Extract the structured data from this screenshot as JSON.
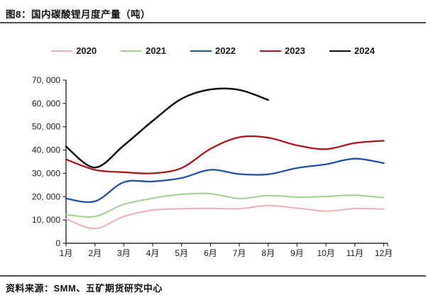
{
  "window": {
    "title": "图8：国内碳酸锂月度产量（吨）"
  },
  "source_note": "资料来源：SMM、五矿期货研究中心",
  "chart_data": {
    "type": "line",
    "title": "国内碳酸锂月度产量（吨）",
    "x": [
      "1月",
      "2月",
      "3月",
      "4月",
      "5月",
      "6月",
      "7月",
      "8月",
      "9月",
      "10月",
      "11月",
      "12月"
    ],
    "xlabel": "",
    "ylabel": "",
    "ylim": [
      0,
      70000
    ],
    "y_ticks": [
      0,
      10000,
      20000,
      30000,
      40000,
      50000,
      60000,
      70000
    ],
    "y_tick_labels": [
      "0",
      "10, 000",
      "20, 000",
      "30, 000",
      "40, 000",
      "50, 000",
      "60, 000",
      "70, 000"
    ],
    "grid": false,
    "legend_position": "top",
    "axis_color": "#2b2b2b",
    "series": [
      {
        "name": "2020",
        "color": "#efaeb5",
        "width": 2,
        "values": [
          10500,
          6300,
          11500,
          14200,
          14800,
          15000,
          14800,
          16200,
          15100,
          13800,
          14900,
          14700
        ]
      },
      {
        "name": "2021",
        "color": "#a4cd92",
        "width": 2,
        "values": [
          12300,
          11500,
          16700,
          19300,
          21000,
          21300,
          19200,
          20500,
          19800,
          20100,
          20600,
          19600
        ]
      },
      {
        "name": "2022",
        "color": "#2351a0",
        "width": 2.3,
        "values": [
          19200,
          18000,
          26200,
          26500,
          28000,
          31500,
          29700,
          29600,
          32300,
          33900,
          36300,
          34400
        ]
      },
      {
        "name": "2023",
        "color": "#a8161e",
        "width": 2.3,
        "values": [
          36000,
          31500,
          30500,
          30000,
          32300,
          40500,
          45500,
          45300,
          42000,
          40400,
          43000,
          44000
        ]
      },
      {
        "name": "2024",
        "color": "#0f0f0f",
        "width": 2.5,
        "values": [
          41500,
          32500,
          42000,
          52500,
          62000,
          66000,
          65800,
          61500,
          null,
          null,
          null,
          null
        ]
      }
    ]
  }
}
